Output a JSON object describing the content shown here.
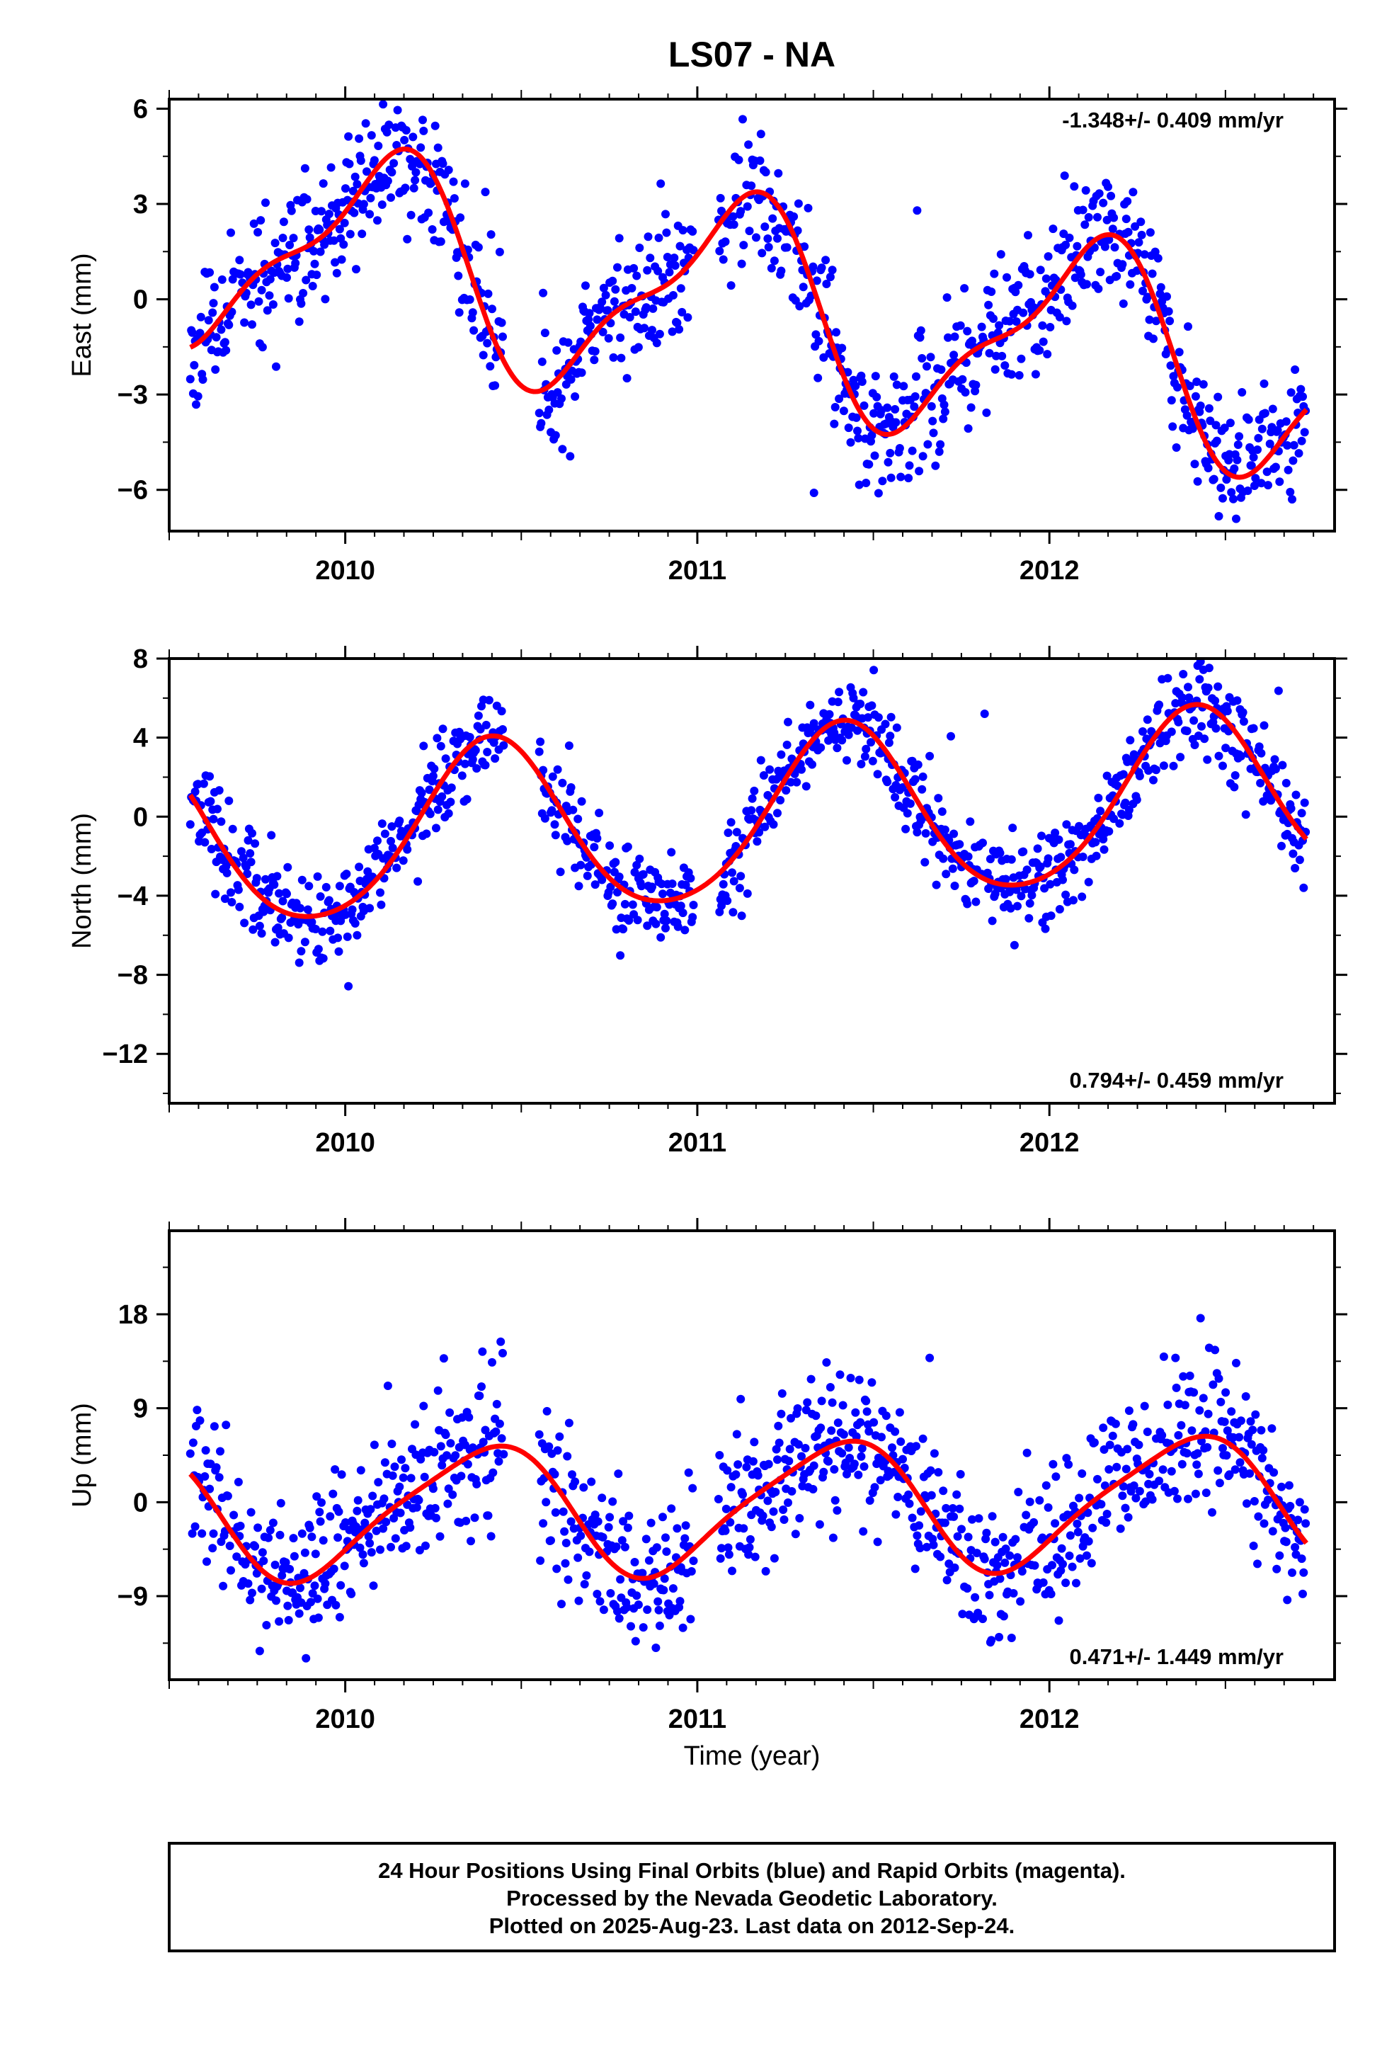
{
  "title": "LS07 - NA",
  "xlabel": "Time (year)",
  "footer": {
    "line1": "24 Hour Positions Using Final Orbits (blue) and Rapid Orbits (magenta).",
    "line2": "Processed by the Nevada Geodetic Laboratory.",
    "line3": "Plotted on 2025-Aug-23. Last data on 2012-Sep-24."
  },
  "colors": {
    "final_orbits": "#0000ff",
    "model": "#ff0000",
    "frame": "#000000"
  },
  "chart_data": [
    {
      "type": "scatter",
      "ylabel": "East (mm)",
      "rate": "-1.348+/- 0.409 mm/yr",
      "xlim": [
        2009.5,
        2012.81
      ],
      "ylim": [
        -7.3,
        6.3
      ],
      "yticks": [
        -6,
        -3,
        0,
        3,
        6
      ],
      "xticks": [
        2010,
        2011,
        2012
      ],
      "grid": false,
      "rate_position": "top-right",
      "series": [
        {
          "role": "observations",
          "color": "#0000ff",
          "model": {
            "trend": -1.348,
            "offset": 0.0,
            "annual": [
              2.4,
              1.9
            ],
            "semiannual": [
              -1.0,
              0.3
            ],
            "noise": 1.05,
            "seed": 11
          }
        },
        {
          "role": "model",
          "color": "#ff0000",
          "model": {
            "trend": -1.348,
            "offset": 0.0,
            "annual": [
              2.4,
              1.9
            ],
            "semiannual": [
              -1.0,
              0.3
            ]
          }
        }
      ]
    },
    {
      "type": "scatter",
      "ylabel": "North (mm)",
      "rate": "0.794+/- 0.459 mm/yr",
      "xlim": [
        2009.5,
        2012.81
      ],
      "ylim": [
        -14.5,
        8
      ],
      "yticks": [
        -12,
        -8,
        -4,
        0,
        4,
        8
      ],
      "xticks": [
        2010,
        2011,
        2012
      ],
      "grid": false,
      "rate_position": "bottom-right",
      "series": [
        {
          "role": "observations",
          "color": "#0000ff",
          "model": {
            "trend": 0.794,
            "offset": -0.3,
            "annual": [
              -3.7,
              2.3
            ],
            "semiannual": [
              0.3,
              -0.4
            ],
            "noise": 1.15,
            "seed": 23
          }
        },
        {
          "role": "model",
          "color": "#ff0000",
          "model": {
            "trend": 0.794,
            "offset": -0.3,
            "annual": [
              -3.7,
              2.3
            ],
            "semiannual": [
              0.3,
              -0.4
            ]
          }
        }
      ]
    },
    {
      "type": "scatter",
      "ylabel": "Up (mm)",
      "rate": "0.471+/- 1.449 mm/yr",
      "xlim": [
        2009.5,
        2012.81
      ],
      "ylim": [
        -17,
        26
      ],
      "yticks": [
        -9,
        0,
        9,
        18
      ],
      "xticks": [
        2010,
        2011,
        2012
      ],
      "grid": false,
      "rate_position": "bottom-right",
      "series": [
        {
          "role": "observations",
          "color": "#0000ff",
          "model": {
            "trend": 0.471,
            "offset": -0.5,
            "annual": [
              -4.6,
              4.0
            ],
            "semiannual": [
              1.0,
              0.5
            ],
            "noise": 3.6,
            "seed": 37
          }
        },
        {
          "role": "model",
          "color": "#ff0000",
          "model": {
            "trend": 0.471,
            "offset": -0.5,
            "annual": [
              -4.6,
              4.0
            ],
            "semiannual": [
              1.0,
              0.5
            ]
          }
        }
      ]
    }
  ]
}
